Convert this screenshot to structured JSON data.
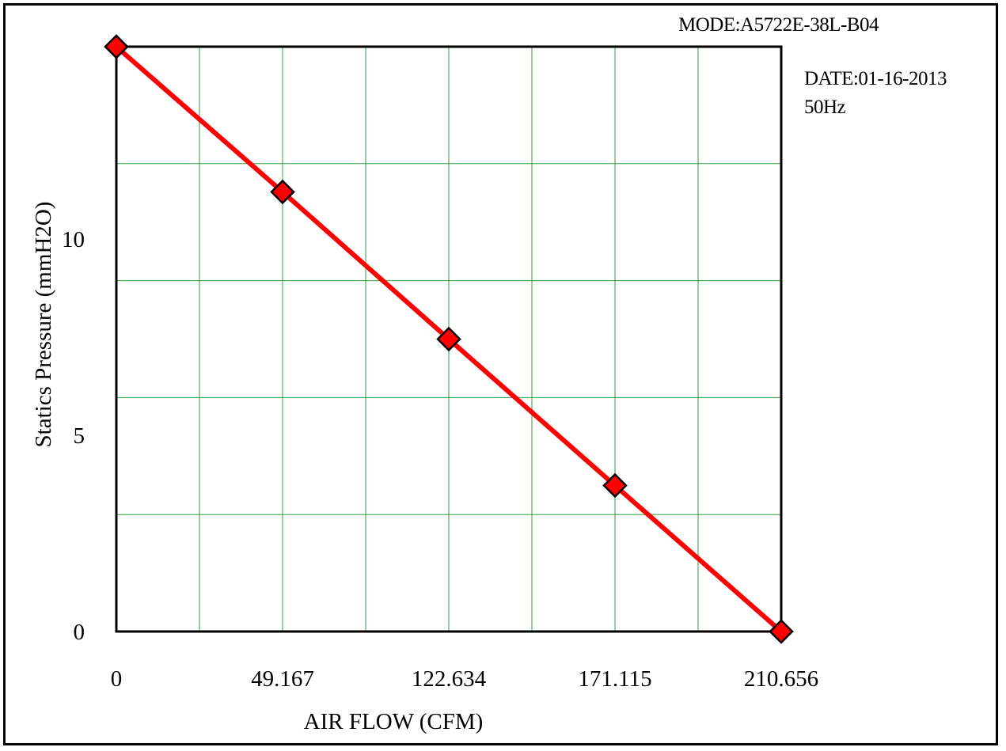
{
  "header": {
    "mode": "MODE:A5722E-38L-B04",
    "date": "DATE:01-16-2013",
    "frequency": "50Hz"
  },
  "colors": {
    "line": "#ff0000",
    "marker_fill": "#ff0000",
    "marker_stroke": "#000000",
    "grid": "#2e9e3e",
    "axis": "#000000"
  },
  "chart_data": {
    "type": "line",
    "xlabel": "AIR FLOW (CFM)",
    "ylabel": "Statics Pressure (mmH2O)",
    "x_tick_labels": [
      "0",
      "49.167",
      "122.634",
      "171.115",
      "210.656"
    ],
    "y_tick_labels": [
      "0",
      "5",
      "10"
    ],
    "y_ticks": [
      0,
      5,
      10
    ],
    "ylim": [
      0,
      14.9
    ],
    "grid": true,
    "series": [
      {
        "x_category_index": [
          0,
          1,
          2,
          3,
          4
        ],
        "x": [
          "0",
          "49.167",
          "122.634",
          "171.115",
          "210.656"
        ],
        "values": [
          14.9,
          11.2,
          7.45,
          3.72,
          0
        ]
      }
    ]
  }
}
